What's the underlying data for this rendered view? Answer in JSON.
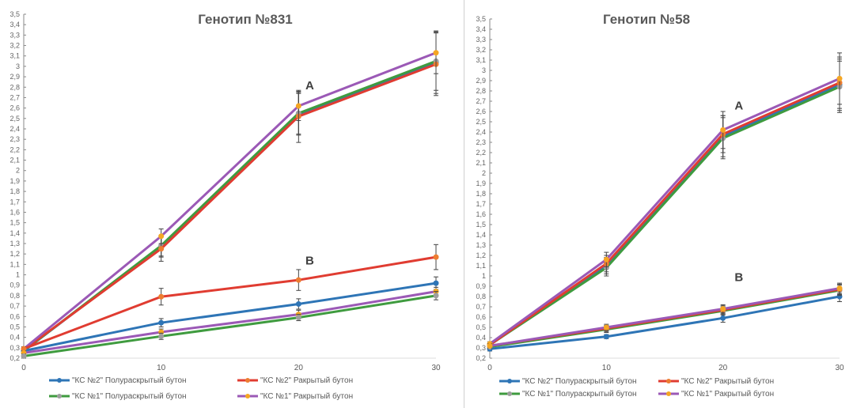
{
  "chart_data": [
    {
      "type": "line",
      "title": "Генотип №831",
      "x": [
        0,
        10,
        20,
        30
      ],
      "xticks": [
        "0",
        "10",
        "20",
        "30"
      ],
      "ylim": [
        0.2,
        3.5
      ],
      "ytick_step": 0.1,
      "grid": false,
      "legend_position": "bottom",
      "annotations": [
        {
          "text": "A",
          "x": 20.5,
          "y": 2.78
        },
        {
          "text": "B",
          "x": 20.5,
          "y": 1.1
        }
      ],
      "series": [
        {
          "name": "\"КС №2\"  Полураскрытый бутон",
          "group": "A",
          "color": "#2e75b6",
          "marker": "#2e75b6",
          "values": [
            0.27,
            1.27,
            2.54,
            3.04
          ],
          "errors": [
            0.02,
            0.1,
            0.2,
            0.3
          ]
        },
        {
          "name": "\"КС №1\"  Полураскрытый бутон",
          "group": "A",
          "color": "#3f9b3f",
          "marker": "#9e9e9e",
          "values": [
            0.27,
            1.28,
            2.55,
            3.05
          ],
          "errors": [
            0.02,
            0.1,
            0.2,
            0.28
          ]
        },
        {
          "name": "\"КС №2\"  Ракрытый бутон",
          "group": "A",
          "color": "#e03c31",
          "marker": "#ed7d31",
          "values": [
            0.28,
            1.25,
            2.52,
            3.02
          ],
          "errors": [
            0.02,
            0.12,
            0.25,
            0.3
          ]
        },
        {
          "name": "\"КС №1\"  Ракрытый бутон",
          "group": "A",
          "color": "#9b59b6",
          "marker": "#f5a623",
          "values": [
            0.29,
            1.37,
            2.62,
            3.13
          ],
          "errors": [
            0.02,
            0.07,
            0.14,
            0.2
          ]
        },
        {
          "name": "\"КС №2\"  Полураскрытый бутон",
          "group": "B",
          "color": "#2e75b6",
          "marker": "#2e75b6",
          "values": [
            0.27,
            0.54,
            0.72,
            0.92
          ],
          "errors": [
            0.02,
            0.04,
            0.05,
            0.06
          ]
        },
        {
          "name": "\"КС №2\"  Ракрытый бутон",
          "group": "B",
          "color": "#e03c31",
          "marker": "#ed7d31",
          "values": [
            0.29,
            0.79,
            0.95,
            1.17
          ],
          "errors": [
            0.02,
            0.08,
            0.1,
            0.12
          ]
        },
        {
          "name": "\"КС №1\"  Ракрытый бутон",
          "group": "B",
          "color": "#9b59b6",
          "marker": "#f5a623",
          "values": [
            0.25,
            0.45,
            0.62,
            0.84
          ],
          "errors": [
            0.02,
            0.03,
            0.04,
            0.04
          ]
        },
        {
          "name": "\"КС №1\"  Полураскрытый бутон",
          "group": "B",
          "color": "#3f9b3f",
          "marker": "#9e9e9e",
          "values": [
            0.22,
            0.41,
            0.59,
            0.8
          ],
          "errors": [
            0.02,
            0.03,
            0.03,
            0.04
          ]
        }
      ]
    },
    {
      "type": "line",
      "title": "Генотип №58",
      "x": [
        0,
        10,
        20,
        30
      ],
      "xticks": [
        "0",
        "10",
        "20",
        "30"
      ],
      "ylim": [
        0.2,
        3.5
      ],
      "ytick_step": 0.1,
      "grid": false,
      "legend_position": "bottom",
      "annotations": [
        {
          "text": "A",
          "x": 21,
          "y": 2.62
        },
        {
          "text": "B",
          "x": 21,
          "y": 0.95
        }
      ],
      "series": [
        {
          "name": "\"КС №2\"  Полураскрытый бутон",
          "group": "A",
          "color": "#2e75b6",
          "marker": "#2e75b6",
          "values": [
            0.33,
            1.1,
            2.36,
            2.86
          ],
          "errors": [
            0.02,
            0.08,
            0.2,
            0.25
          ]
        },
        {
          "name": "\"КС №1\"  Полураскрытый бутон",
          "group": "A",
          "color": "#3f9b3f",
          "marker": "#9e9e9e",
          "values": [
            0.33,
            1.08,
            2.34,
            2.84
          ],
          "errors": [
            0.02,
            0.08,
            0.2,
            0.25
          ]
        },
        {
          "name": "\"КС №2\"  Ракрытый бутон",
          "group": "A",
          "color": "#e03c31",
          "marker": "#ed7d31",
          "values": [
            0.33,
            1.12,
            2.38,
            2.88
          ],
          "errors": [
            0.02,
            0.08,
            0.18,
            0.25
          ]
        },
        {
          "name": "\"КС №1\"  Ракрытый бутон",
          "group": "A",
          "color": "#9b59b6",
          "marker": "#f5a623",
          "values": [
            0.34,
            1.16,
            2.42,
            2.92
          ],
          "errors": [
            0.02,
            0.07,
            0.18,
            0.25
          ]
        },
        {
          "name": "\"КС №2\"  Полураскрытый бутон",
          "group": "B",
          "color": "#2e75b6",
          "marker": "#2e75b6",
          "values": [
            0.29,
            0.41,
            0.59,
            0.8
          ],
          "errors": [
            0.02,
            0.02,
            0.04,
            0.05
          ]
        },
        {
          "name": "\"КС №1\"  Полураскрытый бутон",
          "group": "B",
          "color": "#3f9b3f",
          "marker": "#9e9e9e",
          "values": [
            0.31,
            0.48,
            0.66,
            0.86
          ],
          "errors": [
            0.02,
            0.03,
            0.04,
            0.05
          ]
        },
        {
          "name": "\"КС №2\"  Ракрытый бутон",
          "group": "B",
          "color": "#e03c31",
          "marker": "#ed7d31",
          "values": [
            0.32,
            0.49,
            0.67,
            0.87
          ],
          "errors": [
            0.02,
            0.03,
            0.04,
            0.05
          ]
        },
        {
          "name": "\"КС №1\"  Ракрытый бутон",
          "group": "B",
          "color": "#9b59b6",
          "marker": "#f5a623",
          "values": [
            0.32,
            0.5,
            0.68,
            0.88
          ],
          "errors": [
            0.02,
            0.03,
            0.04,
            0.05
          ]
        }
      ]
    }
  ],
  "legend": [
    {
      "label": "\"КС №2\"  Полураскрытый бутон",
      "color": "#2e75b6",
      "marker": "#2e75b6"
    },
    {
      "label": "\"КС №2\"  Ракрытый бутон",
      "color": "#e03c31",
      "marker": "#ed7d31"
    },
    {
      "label": "\"КС №1\"  Полураскрытый бутон",
      "color": "#3f9b3f",
      "marker": "#9e9e9e"
    },
    {
      "label": "\"КС №1\"  Ракрытый бутон",
      "color": "#9b59b6",
      "marker": "#f5a623"
    }
  ]
}
